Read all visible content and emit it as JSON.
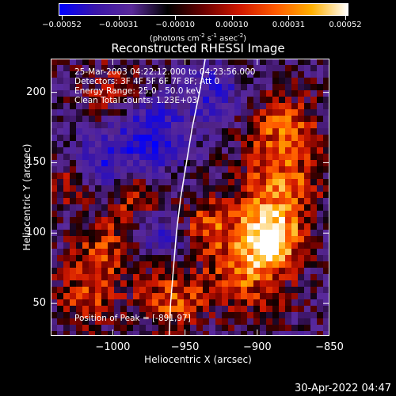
{
  "colorbar": {
    "ticks": [
      "-0.00052",
      "-0.00031",
      "-0.00010",
      "0.00010",
      "0.00031",
      "0.00052"
    ],
    "colors": [
      "#0000ff",
      "#3a16a8",
      "#5a2a9a",
      "#000000",
      "#6b0000",
      "#d01800",
      "#ff5a00",
      "#ffb000",
      "#ffffff"
    ]
  },
  "chart_data": {
    "type": "heatmap",
    "title": "Reconstructed RHESSI Image",
    "units_label_parts": [
      "(photons cm",
      "-2",
      " s",
      "-1",
      " asec",
      "-2",
      ")"
    ],
    "xlabel": "Heliocentric X (arcsec)",
    "ylabel": "Heliocentric Y (arcsec)",
    "xlim": [
      -1043,
      -850
    ],
    "ylim": [
      27,
      224
    ],
    "x_ticks": [
      -1000,
      -950,
      -900,
      -850
    ],
    "x_tick_labels": [
      "−1000",
      "−950",
      "−900",
      "−850"
    ],
    "y_ticks": [
      50,
      100,
      150,
      200
    ],
    "y_tick_labels": [
      "50",
      "100",
      "150",
      "200"
    ],
    "annotations": [
      "25-Mar-2003 04:22:12.000 to 04:23:56.000",
      "Detectors: 3F 4F 5F 6F 7F 8F; Att 0",
      "Energy Range: 25.0 - 50.0 keV",
      "Clean    Total counts: 1.23E+03"
    ],
    "peak_label": "Position of Peak = [-891,97]",
    "peak": [
      -891,
      97
    ],
    "limb_curve": [
      [
        -961,
        27
      ],
      [
        -960,
        50
      ],
      [
        -958,
        75
      ],
      [
        -956,
        100
      ],
      [
        -953,
        125
      ],
      [
        -949,
        150
      ],
      [
        -945,
        175
      ],
      [
        -940,
        200
      ],
      [
        -936,
        224
      ]
    ],
    "hot_regions": [
      {
        "x": -892,
        "y": 97,
        "sigma": 14,
        "amp": 1.0
      },
      {
        "x": -885,
        "y": 130,
        "sigma": 20,
        "amp": 0.7
      },
      {
        "x": -882,
        "y": 175,
        "sigma": 18,
        "amp": 0.6
      },
      {
        "x": -905,
        "y": 70,
        "sigma": 20,
        "amp": 0.6
      },
      {
        "x": -935,
        "y": 105,
        "sigma": 14,
        "amp": 0.6
      },
      {
        "x": -960,
        "y": 55,
        "sigma": 18,
        "amp": 0.6
      },
      {
        "x": -985,
        "y": 125,
        "sigma": 12,
        "amp": 0.5
      },
      {
        "x": -1005,
        "y": 90,
        "sigma": 16,
        "amp": 0.5
      },
      {
        "x": -1020,
        "y": 55,
        "sigma": 16,
        "amp": 0.5
      },
      {
        "x": -1030,
        "y": 135,
        "sigma": 12,
        "amp": 0.4
      },
      {
        "x": -1000,
        "y": 200,
        "sigma": 16,
        "amp": 0.4
      }
    ],
    "cold_regions": [
      {
        "x": -975,
        "y": 170,
        "sigma": 18,
        "amp": 0.7
      },
      {
        "x": -1010,
        "y": 150,
        "sigma": 14,
        "amp": 0.5
      },
      {
        "x": -965,
        "y": 95,
        "sigma": 14,
        "amp": 0.5
      },
      {
        "x": -930,
        "y": 200,
        "sigma": 14,
        "amp": 0.5
      }
    ]
  },
  "footer": "30-Apr-2022 04:47"
}
